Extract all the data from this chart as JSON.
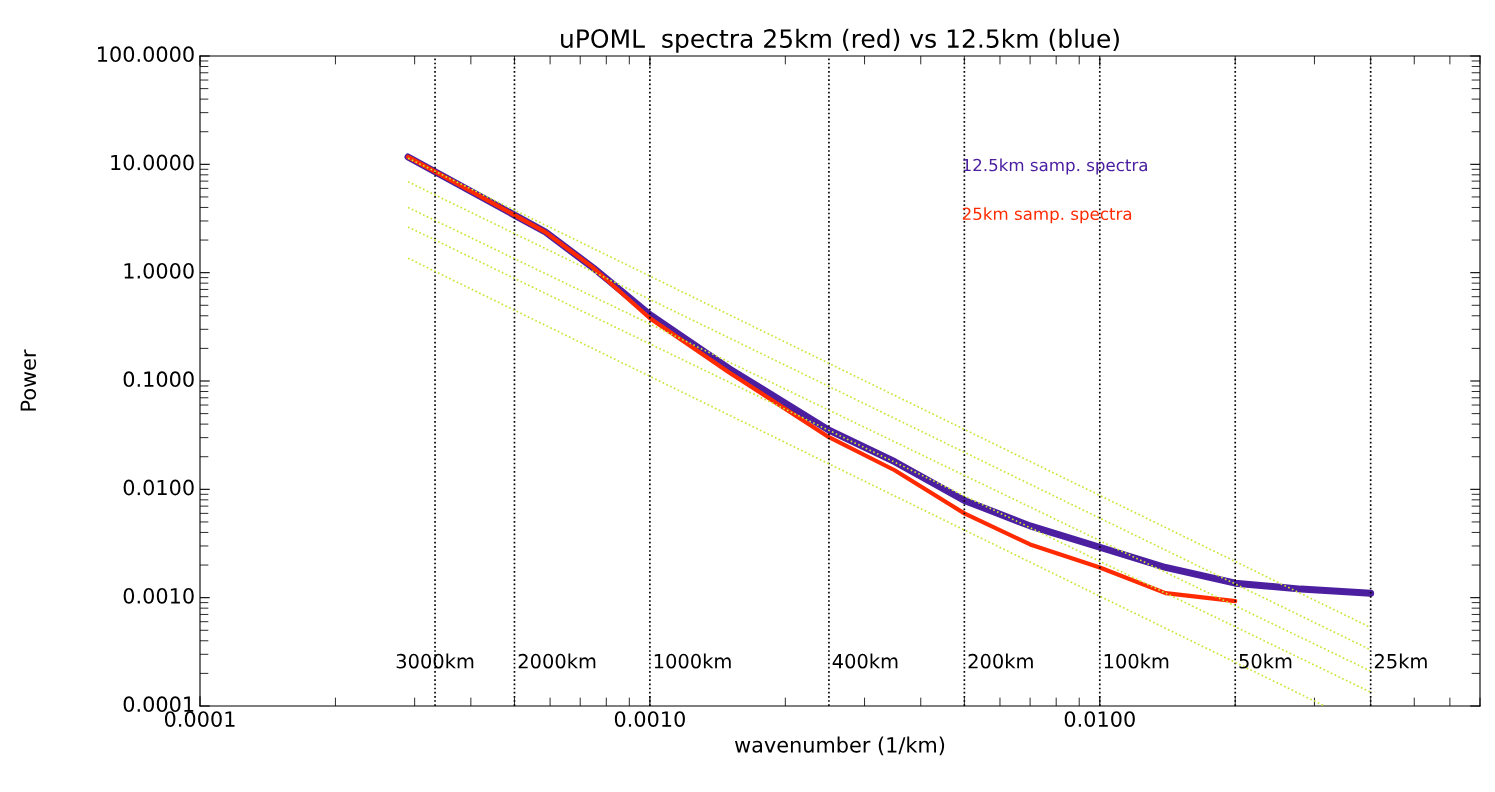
{
  "chart_data": {
    "type": "line",
    "title": "uPOML  spectra 25km (red) vs 12.5km (blue)",
    "xlabel": "wavenumber (1/km)",
    "ylabel": "Power",
    "log": "xy",
    "grid": false,
    "xlim": [
      0.0001,
      0.07
    ],
    "ylim": [
      0.0001,
      100
    ],
    "xticks": [
      {
        "value": 0.0001,
        "label": "0.0001"
      },
      {
        "value": 0.001,
        "label": "0.0010"
      },
      {
        "value": 0.01,
        "label": "0.0100"
      }
    ],
    "yticks": [
      {
        "value": 0.0001,
        "label": "0.0001"
      },
      {
        "value": 0.001,
        "label": "0.0010"
      },
      {
        "value": 0.01,
        "label": "0.0100"
      },
      {
        "value": 0.1,
        "label": "0.1000"
      },
      {
        "value": 1,
        "label": "1.0000"
      },
      {
        "value": 10,
        "label": "10.0000"
      },
      {
        "value": 100,
        "label": "100.0000"
      }
    ],
    "series": [
      {
        "color": "#c8e632",
        "line_style": "dotted",
        "x": [
          0.00029,
          0.04
        ],
        "values": [
          11.4,
          0.00053
        ]
      },
      {
        "color": "#c8e632",
        "line_style": "dotted",
        "x": [
          0.00029,
          0.04
        ],
        "values": [
          6.9,
          0.00033
        ]
      },
      {
        "color": "#c8e632",
        "line_style": "dotted",
        "x": [
          0.00029,
          0.04
        ],
        "values": [
          4.0,
          0.00021
        ]
      },
      {
        "color": "#c8e632",
        "line_style": "dotted",
        "x": [
          0.00029,
          0.04
        ],
        "values": [
          2.64,
          0.000134
        ]
      },
      {
        "color": "#c8e632",
        "line_style": "dotted",
        "x": [
          0.00029,
          0.0316
        ],
        "values": [
          1.36,
          0.0001
        ]
      },
      {
        "name": "12.5km samp. spectra",
        "color": "#4b1fa0",
        "line_style": "solid",
        "x": [
          0.00029,
          0.0005,
          0.000586,
          0.00075,
          0.001,
          0.0015,
          0.0025,
          0.0035,
          0.005,
          0.007,
          0.01,
          0.014,
          0.02,
          0.028,
          0.04
        ],
        "values": [
          11.7,
          3.4,
          2.37,
          1.1,
          0.41,
          0.13,
          0.0352,
          0.018,
          0.0079,
          0.0046,
          0.00292,
          0.0019,
          0.00136,
          0.0012,
          0.0011
        ]
      },
      {
        "name": "25km samp. spectra",
        "color": "#ff2a00",
        "line_style": "solid",
        "x": [
          0.00029,
          0.0005,
          0.000586,
          0.00075,
          0.001,
          0.0015,
          0.0025,
          0.0035,
          0.005,
          0.007,
          0.01,
          0.014,
          0.02
        ],
        "values": [
          11.7,
          3.4,
          2.37,
          1.1,
          0.38,
          0.12,
          0.0303,
          0.015,
          0.006,
          0.0031,
          0.0019,
          0.0011,
          0.00093
        ]
      }
    ],
    "ref_lines": [
      {
        "axis": "x",
        "value": 0.000333,
        "label": "3000km",
        "color": "#000000",
        "line_style": "dotted"
      },
      {
        "axis": "x",
        "value": 0.0005,
        "label": "2000km",
        "color": "#000000",
        "line_style": "dotted"
      },
      {
        "axis": "x",
        "value": 0.001,
        "label": "1000km",
        "color": "#000000",
        "line_style": "dotted"
      },
      {
        "axis": "x",
        "value": 0.0025,
        "label": "400km",
        "color": "#000000",
        "line_style": "dotted"
      },
      {
        "axis": "x",
        "value": 0.005,
        "label": "200km",
        "color": "#000000",
        "line_style": "dotted"
      },
      {
        "axis": "x",
        "value": 0.01,
        "label": "100km",
        "color": "#000000",
        "line_style": "dotted"
      },
      {
        "axis": "x",
        "value": 0.02,
        "label": "50km",
        "color": "#000000",
        "line_style": "dotted"
      },
      {
        "axis": "x",
        "value": 0.04,
        "label": "25km",
        "color": "#000000",
        "line_style": "dotted"
      }
    ]
  }
}
